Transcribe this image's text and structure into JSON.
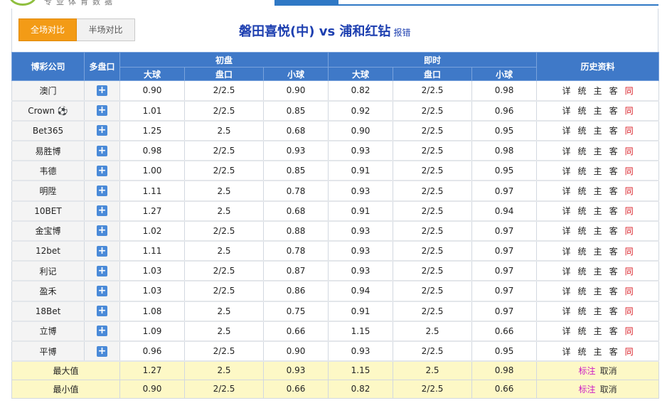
{
  "site": {
    "name": "专业体育数据"
  },
  "tabs": {
    "full": "全场对比",
    "half": "半场对比"
  },
  "match": {
    "title": "磐田喜悦(中) vs 浦和红钻",
    "report": "报错"
  },
  "colors": {
    "header_blue": "#3f79c8",
    "tab_orange": "#f39b16",
    "summary_yellow": "#fdf8c6",
    "link_red": "#d8141c",
    "mark_magenta": "#cc1bc5"
  },
  "headers": {
    "company": "博彩公司",
    "multi": "多盘口",
    "initial": "初盘",
    "live": "即时",
    "history": "历史资料",
    "big": "大球",
    "line": "盘口",
    "small": "小球"
  },
  "history_links": [
    "详",
    "统",
    "主",
    "客",
    "同"
  ],
  "rows": [
    {
      "company": "澳门",
      "i_big": "0.90",
      "i_line": "2/2.5",
      "i_small": "0.90",
      "l_big": "0.82",
      "l_line": "2/2.5",
      "l_small": "0.98"
    },
    {
      "company": "Crown ⚽",
      "i_big": "1.01",
      "i_line": "2/2.5",
      "i_small": "0.85",
      "l_big": "0.92",
      "l_line": "2/2.5",
      "l_small": "0.96"
    },
    {
      "company": "Bet365",
      "i_big": "1.25",
      "i_line": "2.5",
      "i_small": "0.68",
      "l_big": "0.90",
      "l_line": "2/2.5",
      "l_small": "0.95"
    },
    {
      "company": "易胜博",
      "i_big": "0.98",
      "i_line": "2/2.5",
      "i_small": "0.93",
      "l_big": "0.93",
      "l_line": "2/2.5",
      "l_small": "0.98"
    },
    {
      "company": "韦德",
      "i_big": "1.00",
      "i_line": "2/2.5",
      "i_small": "0.85",
      "l_big": "0.91",
      "l_line": "2/2.5",
      "l_small": "0.95"
    },
    {
      "company": "明陞",
      "i_big": "1.11",
      "i_line": "2.5",
      "i_small": "0.78",
      "l_big": "0.93",
      "l_line": "2/2.5",
      "l_small": "0.97"
    },
    {
      "company": "10BET",
      "i_big": "1.27",
      "i_line": "2.5",
      "i_small": "0.68",
      "l_big": "0.91",
      "l_line": "2/2.5",
      "l_small": "0.94"
    },
    {
      "company": "金宝博",
      "i_big": "1.02",
      "i_line": "2/2.5",
      "i_small": "0.88",
      "l_big": "0.93",
      "l_line": "2/2.5",
      "l_small": "0.97"
    },
    {
      "company": "12bet",
      "i_big": "1.11",
      "i_line": "2.5",
      "i_small": "0.78",
      "l_big": "0.93",
      "l_line": "2/2.5",
      "l_small": "0.97"
    },
    {
      "company": "利记",
      "i_big": "1.03",
      "i_line": "2/2.5",
      "i_small": "0.87",
      "l_big": "0.93",
      "l_line": "2/2.5",
      "l_small": "0.97"
    },
    {
      "company": "盈禾",
      "i_big": "1.03",
      "i_line": "2/2.5",
      "i_small": "0.86",
      "l_big": "0.94",
      "l_line": "2/2.5",
      "l_small": "0.97"
    },
    {
      "company": "18Bet",
      "i_big": "1.08",
      "i_line": "2.5",
      "i_small": "0.75",
      "l_big": "0.91",
      "l_line": "2/2.5",
      "l_small": "0.97"
    },
    {
      "company": "立博",
      "i_big": "1.09",
      "i_line": "2.5",
      "i_small": "0.66",
      "l_big": "1.15",
      "l_line": "2.5",
      "l_small": "0.66"
    },
    {
      "company": "平博",
      "i_big": "0.96",
      "i_line": "2/2.5",
      "i_small": "0.90",
      "l_big": "0.93",
      "l_line": "2/2.5",
      "l_small": "0.95"
    }
  ],
  "summary": {
    "max": {
      "label": "最大值",
      "i_big": "1.27",
      "i_line": "2.5",
      "i_small": "0.93",
      "l_big": "1.15",
      "l_line": "2.5",
      "l_small": "0.98"
    },
    "min": {
      "label": "最小值",
      "i_big": "0.90",
      "i_line": "2/2.5",
      "i_small": "0.66",
      "l_big": "0.82",
      "l_line": "2/2.5",
      "l_small": "0.66"
    },
    "mark_label": "标注",
    "cancel_label": "取消"
  }
}
